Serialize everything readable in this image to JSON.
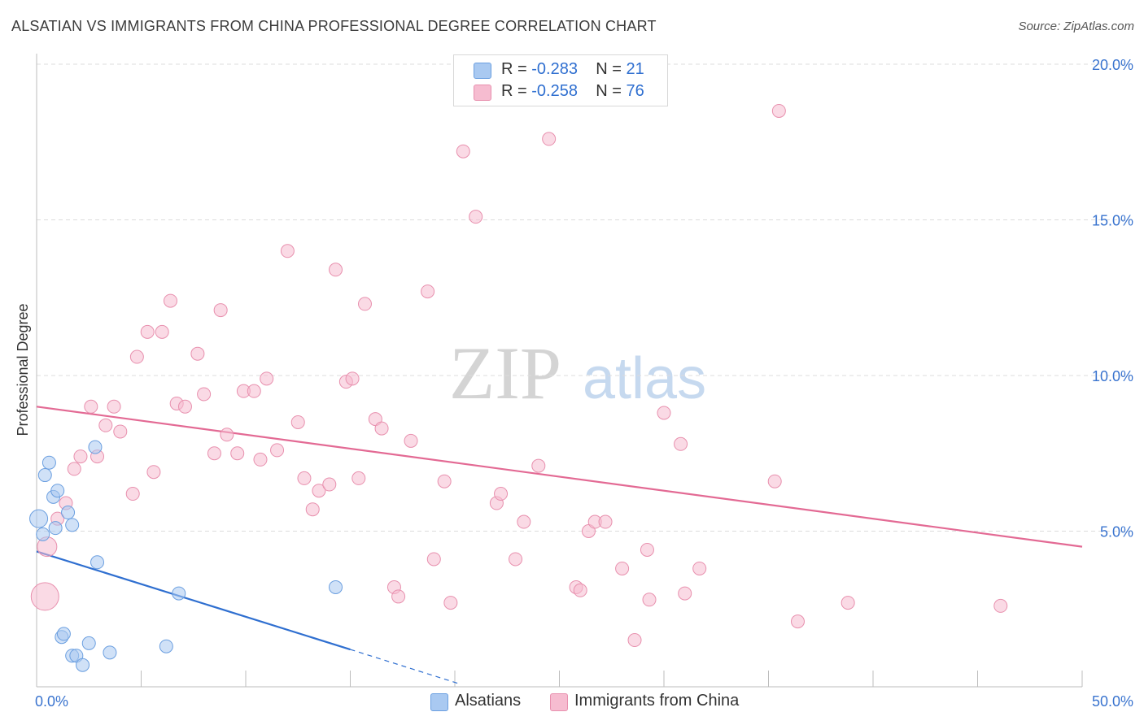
{
  "title": "ALSATIAN VS IMMIGRANTS FROM CHINA PROFESSIONAL DEGREE CORRELATION CHART",
  "source": "Source: ZipAtlas.com",
  "watermark": {
    "zip": "ZIP",
    "atlas": "atlas"
  },
  "legend": {
    "rows": [
      {
        "r_label": "R = ",
        "r_value": "-0.283",
        "n_label": "N = ",
        "n_value": "21"
      },
      {
        "r_label": "R = ",
        "r_value": "-0.258",
        "n_label": "N = ",
        "n_value": "76"
      }
    ]
  },
  "bottom_legend": [
    "Alsatians",
    "Immigrants from China"
  ],
  "colors": {
    "blue_fill": "#a9c9f1",
    "blue_stroke": "#6b9fe0",
    "blue_line": "#2f6fd0",
    "pink_fill": "#f6bcd0",
    "pink_stroke": "#e890ae",
    "pink_line": "#e36a94",
    "axis_label": "#3a74cf",
    "grid": "#dcdcdc"
  },
  "chart_data": {
    "type": "scatter",
    "title": "ALSATIAN VS IMMIGRANTS FROM CHINA PROFESSIONAL DEGREE CORRELATION CHART",
    "xlabel": "",
    "ylabel": "Professional Degree",
    "xlim": [
      0,
      50
    ],
    "ylim": [
      0,
      20
    ],
    "x_tick_labels": [
      "0.0%",
      "50.0%"
    ],
    "y_ticks": [
      5,
      10,
      15,
      20
    ],
    "y_tick_labels": [
      "5.0%",
      "10.0%",
      "15.0%",
      "20.0%"
    ],
    "grid": true,
    "series": [
      {
        "name": "Alsatians",
        "r": -0.283,
        "n": 21,
        "points": [
          [
            0.1,
            5.4
          ],
          [
            0.3,
            4.9
          ],
          [
            0.4,
            6.8
          ],
          [
            0.6,
            7.2
          ],
          [
            0.8,
            6.1
          ],
          [
            0.9,
            5.1
          ],
          [
            1.0,
            6.3
          ],
          [
            1.2,
            1.6
          ],
          [
            1.3,
            1.7
          ],
          [
            1.5,
            5.6
          ],
          [
            1.7,
            5.2
          ],
          [
            1.7,
            1.0
          ],
          [
            1.9,
            1.0
          ],
          [
            2.2,
            0.7
          ],
          [
            2.5,
            1.4
          ],
          [
            2.8,
            7.7
          ],
          [
            2.9,
            4.0
          ],
          [
            3.5,
            1.1
          ],
          [
            6.2,
            1.3
          ],
          [
            6.8,
            3.0
          ],
          [
            14.3,
            3.2
          ]
        ],
        "trend": {
          "x0": 0,
          "y0": 4.35,
          "x1": 15,
          "y1": 1.2,
          "dash_to_x": 20.2,
          "dash_to_y": 0.1
        }
      },
      {
        "name": "Immigrants from China",
        "r": -0.258,
        "n": 76,
        "points": [
          [
            0.5,
            4.5
          ],
          [
            0.4,
            2.9
          ],
          [
            1.0,
            5.4
          ],
          [
            1.4,
            5.9
          ],
          [
            1.8,
            7.0
          ],
          [
            2.1,
            7.4
          ],
          [
            2.6,
            9.0
          ],
          [
            2.9,
            7.4
          ],
          [
            3.3,
            8.4
          ],
          [
            3.7,
            9.0
          ],
          [
            4.0,
            8.2
          ],
          [
            4.6,
            6.2
          ],
          [
            4.8,
            10.6
          ],
          [
            5.3,
            11.4
          ],
          [
            5.6,
            6.9
          ],
          [
            6.0,
            11.4
          ],
          [
            6.4,
            12.4
          ],
          [
            6.7,
            9.1
          ],
          [
            7.1,
            9.0
          ],
          [
            7.7,
            10.7
          ],
          [
            8.0,
            9.4
          ],
          [
            8.5,
            7.5
          ],
          [
            8.8,
            12.1
          ],
          [
            9.1,
            8.1
          ],
          [
            9.6,
            7.5
          ],
          [
            9.9,
            9.5
          ],
          [
            10.4,
            9.5
          ],
          [
            10.7,
            7.3
          ],
          [
            11.0,
            9.9
          ],
          [
            11.5,
            7.6
          ],
          [
            12.0,
            14.0
          ],
          [
            12.5,
            8.5
          ],
          [
            12.8,
            6.7
          ],
          [
            13.2,
            5.7
          ],
          [
            13.5,
            6.3
          ],
          [
            14.0,
            6.5
          ],
          [
            14.3,
            13.4
          ],
          [
            14.8,
            9.8
          ],
          [
            15.1,
            9.9
          ],
          [
            15.4,
            6.7
          ],
          [
            15.7,
            12.3
          ],
          [
            16.2,
            8.6
          ],
          [
            16.5,
            8.3
          ],
          [
            17.1,
            3.2
          ],
          [
            17.3,
            2.9
          ],
          [
            17.9,
            7.9
          ],
          [
            18.7,
            12.7
          ],
          [
            19.0,
            4.1
          ],
          [
            19.5,
            6.6
          ],
          [
            19.8,
            2.7
          ],
          [
            20.4,
            17.2
          ],
          [
            21.0,
            15.1
          ],
          [
            22.0,
            5.9
          ],
          [
            22.2,
            6.2
          ],
          [
            22.9,
            4.1
          ],
          [
            23.3,
            5.3
          ],
          [
            24.0,
            7.1
          ],
          [
            24.5,
            17.6
          ],
          [
            25.8,
            3.2
          ],
          [
            26.0,
            3.1
          ],
          [
            26.4,
            5.0
          ],
          [
            26.7,
            5.3
          ],
          [
            27.2,
            5.3
          ],
          [
            28.0,
            3.8
          ],
          [
            28.6,
            1.5
          ],
          [
            29.2,
            4.4
          ],
          [
            29.3,
            2.8
          ],
          [
            30.0,
            8.8
          ],
          [
            30.8,
            7.8
          ],
          [
            31.0,
            3.0
          ],
          [
            31.7,
            3.8
          ],
          [
            35.3,
            6.6
          ],
          [
            35.5,
            18.5
          ],
          [
            36.4,
            2.1
          ],
          [
            38.8,
            2.7
          ],
          [
            46.1,
            2.6
          ]
        ],
        "trend": {
          "x0": 0,
          "y0": 9.0,
          "x1": 50,
          "y1": 4.5
        }
      }
    ]
  }
}
